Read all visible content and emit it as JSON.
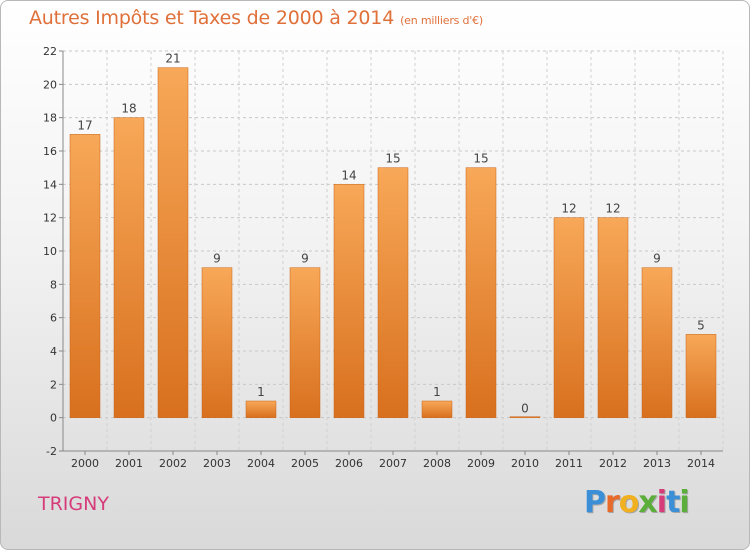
{
  "chart_data": {
    "type": "bar",
    "title": "Autres Impôts et Taxes de 2000 à 2014",
    "subtitle": "(en milliers d'€)",
    "categories": [
      "2000",
      "2001",
      "2002",
      "2003",
      "2004",
      "2005",
      "2006",
      "2007",
      "2008",
      "2009",
      "2010",
      "2011",
      "2012",
      "2013",
      "2014"
    ],
    "values": [
      17,
      18,
      21,
      9,
      1,
      9,
      14,
      15,
      1,
      15,
      0,
      12,
      12,
      9,
      5
    ],
    "ylim": [
      -2,
      22
    ],
    "yticks": [
      -2,
      0,
      2,
      4,
      6,
      8,
      10,
      12,
      14,
      16,
      18,
      20,
      22
    ],
    "grid": true,
    "bar_color": "#f0903a"
  },
  "place": "TRIGNY",
  "brand": {
    "letters": [
      "P",
      "r",
      "o",
      "x",
      "i",
      "t",
      "i"
    ],
    "colors": [
      "#3a8fd6",
      "#e86a2a",
      "#f0b020",
      "#5cae3a",
      "#d63c7a",
      "#3a8fd6",
      "#5cae3a"
    ]
  }
}
